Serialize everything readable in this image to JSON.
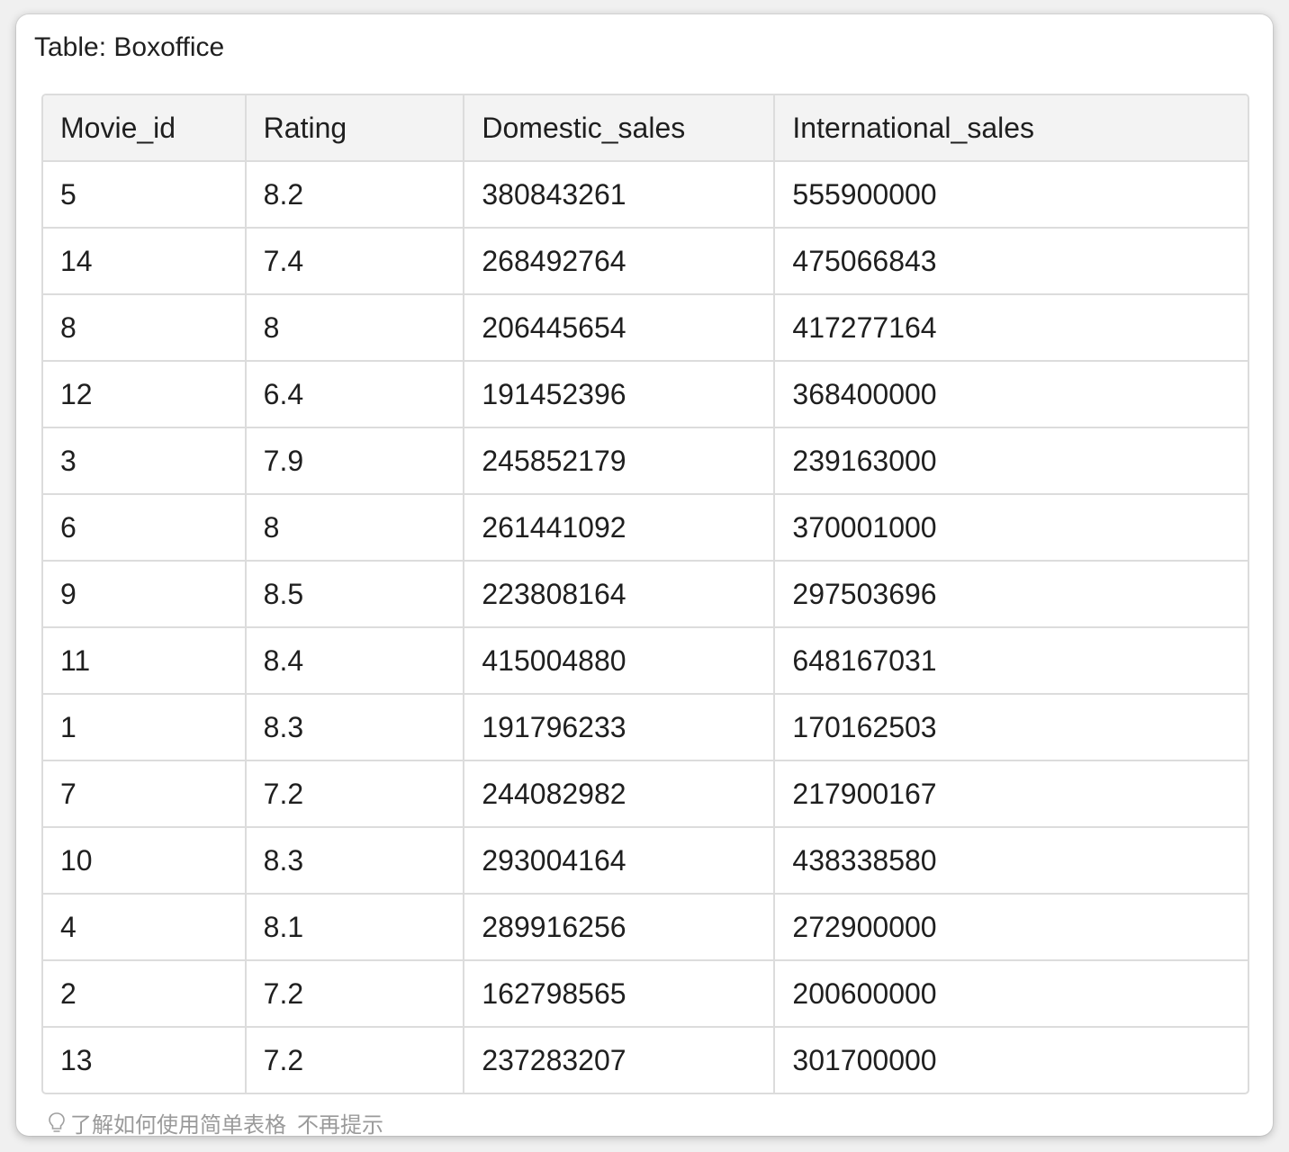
{
  "title": "Table: Boxoffice",
  "table": {
    "columns": [
      "Movie_id",
      "Rating",
      "Domestic_sales",
      "International_sales"
    ],
    "rows": [
      [
        "5",
        "8.2",
        "380843261",
        "555900000"
      ],
      [
        "14",
        "7.4",
        "268492764",
        "475066843"
      ],
      [
        "8",
        "8",
        "206445654",
        "417277164"
      ],
      [
        "12",
        "6.4",
        "191452396",
        "368400000"
      ],
      [
        "3",
        "7.9",
        "245852179",
        "239163000"
      ],
      [
        "6",
        "8",
        "261441092",
        "370001000"
      ],
      [
        "9",
        "8.5",
        "223808164",
        "297503696"
      ],
      [
        "11",
        "8.4",
        "415004880",
        "648167031"
      ],
      [
        "1",
        "8.3",
        "191796233",
        "170162503"
      ],
      [
        "7",
        "7.2",
        "244082982",
        "217900167"
      ],
      [
        "10",
        "8.3",
        "293004164",
        "438338580"
      ],
      [
        "4",
        "8.1",
        "289916256",
        "272900000"
      ],
      [
        "2",
        "7.2",
        "162798565",
        "200600000"
      ],
      [
        "13",
        "7.2",
        "237283207",
        "301700000"
      ]
    ]
  },
  "footer": {
    "icon": "lightbulb-icon",
    "tip_text": "了解如何使用简单表格",
    "dismiss_text": "不再提示"
  },
  "colors": {
    "border": "#dcdcdc",
    "header_bg": "#f3f3f3",
    "text": "#1f1f1f",
    "footer_text": "#9a9a9a"
  }
}
